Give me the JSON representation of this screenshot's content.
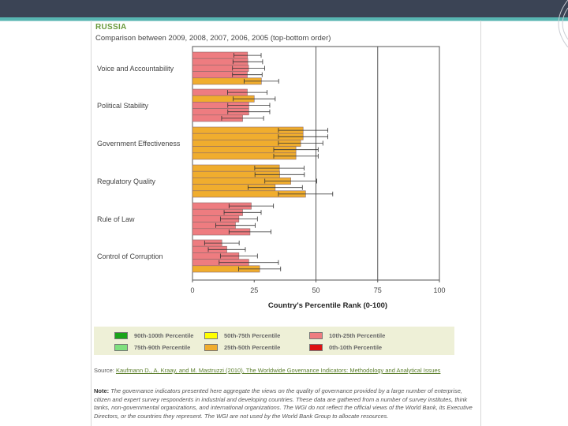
{
  "page": {
    "title": "RUSSIA",
    "subtitle": "Comparison between 2009, 2008, 2007, 2006, 2005 (top-bottom order)"
  },
  "chart_data": {
    "type": "bar",
    "orientation": "horizontal",
    "title": "RUSSIA",
    "subtitle": "Comparison between 2009, 2008, 2007, 2006, 2005 (top-bottom order)",
    "xlabel": "Country's Percentile Rank (0-100)",
    "xlim": [
      0,
      100
    ],
    "xticks": [
      0,
      25,
      50,
      75,
      100
    ],
    "years": [
      2009,
      2008,
      2007,
      2006,
      2005
    ],
    "categories": [
      "Voice and Accountability",
      "Political Stability",
      "Government Effectiveness",
      "Regulatory Quality",
      "Rule of Law",
      "Control of Corruption"
    ],
    "values": [
      [
        22.3,
        22.4,
        22.7,
        22.2,
        27.9
      ],
      [
        22.2,
        25.0,
        22.8,
        22.8,
        20.3
      ],
      [
        44.8,
        44.8,
        43.8,
        41.9,
        41.9
      ],
      [
        35.2,
        35.3,
        39.8,
        33.5,
        45.8
      ],
      [
        23.8,
        20.3,
        18.8,
        17.4,
        23.3
      ],
      [
        11.9,
        13.9,
        18.8,
        22.8,
        27.2
      ]
    ],
    "errors": [
      [
        5.5,
        6.0,
        6.5,
        6.0,
        7.0
      ],
      [
        8.0,
        8.5,
        8.5,
        8.5,
        8.5
      ],
      [
        10.0,
        10.0,
        9.0,
        9.0,
        9.0
      ],
      [
        10.0,
        10.0,
        10.5,
        11.0,
        11.0
      ],
      [
        9.0,
        7.5,
        7.5,
        8.0,
        8.5
      ],
      [
        7.0,
        7.5,
        7.5,
        12.0,
        8.5
      ]
    ],
    "percentile_bands": [
      {
        "label": "90th-100th Percentile",
        "color": "#19a319"
      },
      {
        "label": "75th-90th Percentile",
        "color": "#7fe07f"
      },
      {
        "label": "50th-75th Percentile",
        "color": "#ffff00"
      },
      {
        "label": "25th-50th Percentile",
        "color": "#f0ad2e"
      },
      {
        "label": "10th-25th Percentile",
        "color": "#ee7c80"
      },
      {
        "label": "0th-10th Percentile",
        "color": "#dd1111"
      }
    ],
    "reference_lines": [
      50,
      75
    ],
    "grid": false
  },
  "legend": {
    "items": [
      {
        "label": "90th-100th Percentile",
        "color": "#19a319"
      },
      {
        "label": "50th-75th Percentile",
        "color": "#ffff00"
      },
      {
        "label": "10th-25th Percentile",
        "color": "#ee7c80"
      },
      {
        "label": "75th-90th Percentile",
        "color": "#7fe07f"
      },
      {
        "label": "25th-50th Percentile",
        "color": "#f0ad2e"
      },
      {
        "label": "0th-10th Percentile",
        "color": "#dd1111"
      }
    ]
  },
  "source": {
    "label": "Source:",
    "link_text": "Kaufmann D., A. Kraay, and M. Mastruzzi (2010), The Worldwide Governance Indicators: Methodology and Analytical Issues"
  },
  "note": {
    "label": "Note:",
    "text": "The governance indicators presented here aggregate the views on the quality of governance provided by a large number of enterprise, citizen and expert survey respondents in industrial and developing countries. These data are gathered from a number of survey institutes, think tanks, non-governmental organizations, and international organizations. The WGI do not reflect the official views of the World Bank, its Executive Directors, or the countries they represent. The WGI are not used by the World Bank Group to allocate resources."
  }
}
